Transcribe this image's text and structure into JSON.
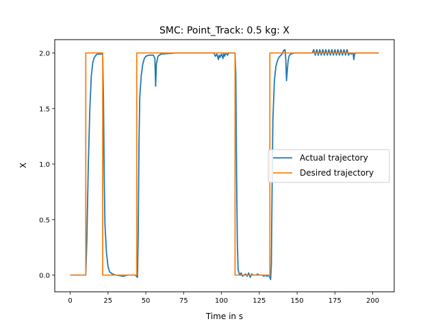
{
  "chart_data": {
    "type": "line",
    "title": "SMC: Point_Track: 0.5 kg: X",
    "xlabel": "Time in s",
    "ylabel": "X",
    "xlim": [
      -10.2,
      214.2
    ],
    "ylim": [
      -0.15,
      2.12
    ],
    "xticks": [
      0,
      25,
      50,
      75,
      100,
      125,
      150,
      175,
      200
    ],
    "yticks": [
      0.0,
      0.5,
      1.0,
      1.5,
      2.0
    ],
    "xtick_labels": [
      "0",
      "25",
      "50",
      "75",
      "100",
      "125",
      "150",
      "175",
      "200"
    ],
    "ytick_labels": [
      "0.0",
      "0.5",
      "1.0",
      "1.5",
      "2.0"
    ],
    "grid": false,
    "legend_position": "center-right",
    "series": [
      {
        "name": "Actual trajectory",
        "color": "#1f77b4",
        "x": [
          0,
          10.3,
          11,
          12,
          13,
          14,
          15,
          16,
          17,
          18,
          20,
          21.5,
          22,
          22.5,
          23,
          24,
          25,
          26,
          28,
          30,
          33,
          35,
          38,
          40,
          43,
          44.5,
          45,
          45.5,
          46,
          47,
          48,
          49,
          50,
          52,
          55,
          56,
          56.5,
          57,
          58,
          60,
          65,
          70,
          75,
          80,
          85,
          90,
          95,
          96,
          97,
          98,
          98.5,
          99,
          100,
          101,
          101.5,
          102,
          103,
          104,
          105,
          106,
          107,
          108,
          109,
          109.5,
          110,
          110.5,
          111,
          112,
          113,
          114,
          116,
          117,
          118,
          119,
          120,
          121,
          122,
          123,
          124,
          125,
          126,
          127,
          128,
          129,
          130,
          131,
          132,
          132.5,
          133,
          133.5,
          134,
          135,
          136,
          137,
          138,
          140,
          141,
          142,
          142.5,
          143,
          144,
          144.5,
          145,
          146,
          148,
          150,
          152,
          155,
          158,
          160,
          161,
          162,
          163,
          164,
          165,
          166,
          167,
          168,
          169,
          170,
          171,
          172,
          173,
          174,
          175,
          176,
          177,
          178,
          179,
          180,
          181,
          182,
          183,
          184,
          185,
          186,
          187,
          187.5,
          188,
          189,
          190,
          195,
          200,
          204
        ],
        "y": [
          0,
          0,
          0.3,
          1.0,
          1.5,
          1.8,
          1.92,
          1.96,
          1.98,
          1.99,
          1.99,
          1.99,
          1.6,
          0.9,
          0.45,
          0.2,
          0.08,
          0.03,
          0.01,
          0,
          -0.005,
          -0.01,
          0,
          0,
          0,
          -0.02,
          0.4,
          1.2,
          1.6,
          1.8,
          1.9,
          1.95,
          1.97,
          1.98,
          1.98,
          1.95,
          1.7,
          1.9,
          1.97,
          1.99,
          1.995,
          2.0,
          2.0,
          2.0,
          2.0,
          2.0,
          2.0,
          1.97,
          1.99,
          1.94,
          1.98,
          1.96,
          1.99,
          1.95,
          2.0,
          1.97,
          2.0,
          1.98,
          2.0,
          2.0,
          2.0,
          2.0,
          2.0,
          1.8,
          0.9,
          0.3,
          0.05,
          0,
          0.02,
          -0.01,
          0.01,
          -0.01,
          0.02,
          -0.02,
          0.01,
          0,
          0,
          0,
          0.01,
          0,
          0,
          0,
          -0.01,
          0,
          -0.01,
          0,
          -0.02,
          -0.04,
          0.1,
          0.8,
          1.4,
          1.75,
          1.88,
          1.93,
          1.96,
          1.99,
          2.02,
          2.03,
          1.95,
          1.75,
          1.92,
          1.96,
          1.98,
          1.99,
          2.0,
          2.0,
          2.0,
          2.0,
          2.0,
          2.0,
          2.03,
          1.98,
          2.03,
          1.98,
          2.03,
          1.98,
          2.03,
          1.98,
          2.03,
          1.98,
          2.03,
          1.98,
          2.03,
          1.98,
          2.03,
          1.98,
          2.03,
          1.98,
          2.03,
          1.98,
          2.03,
          1.98,
          2.03,
          1.98,
          2.0,
          1.99,
          2.0,
          1.94,
          1.99,
          2.0,
          2.0,
          2.0,
          2.0,
          2.0
        ]
      },
      {
        "name": "Desired trajectory",
        "color": "#ff7f0e",
        "x": [
          0,
          10.3,
          10.3,
          21.5,
          21.5,
          44,
          44,
          109,
          109,
          132,
          132,
          204
        ],
        "y": [
          0,
          0,
          2,
          2,
          0,
          0,
          2,
          2,
          0,
          0,
          2,
          2
        ]
      }
    ]
  }
}
